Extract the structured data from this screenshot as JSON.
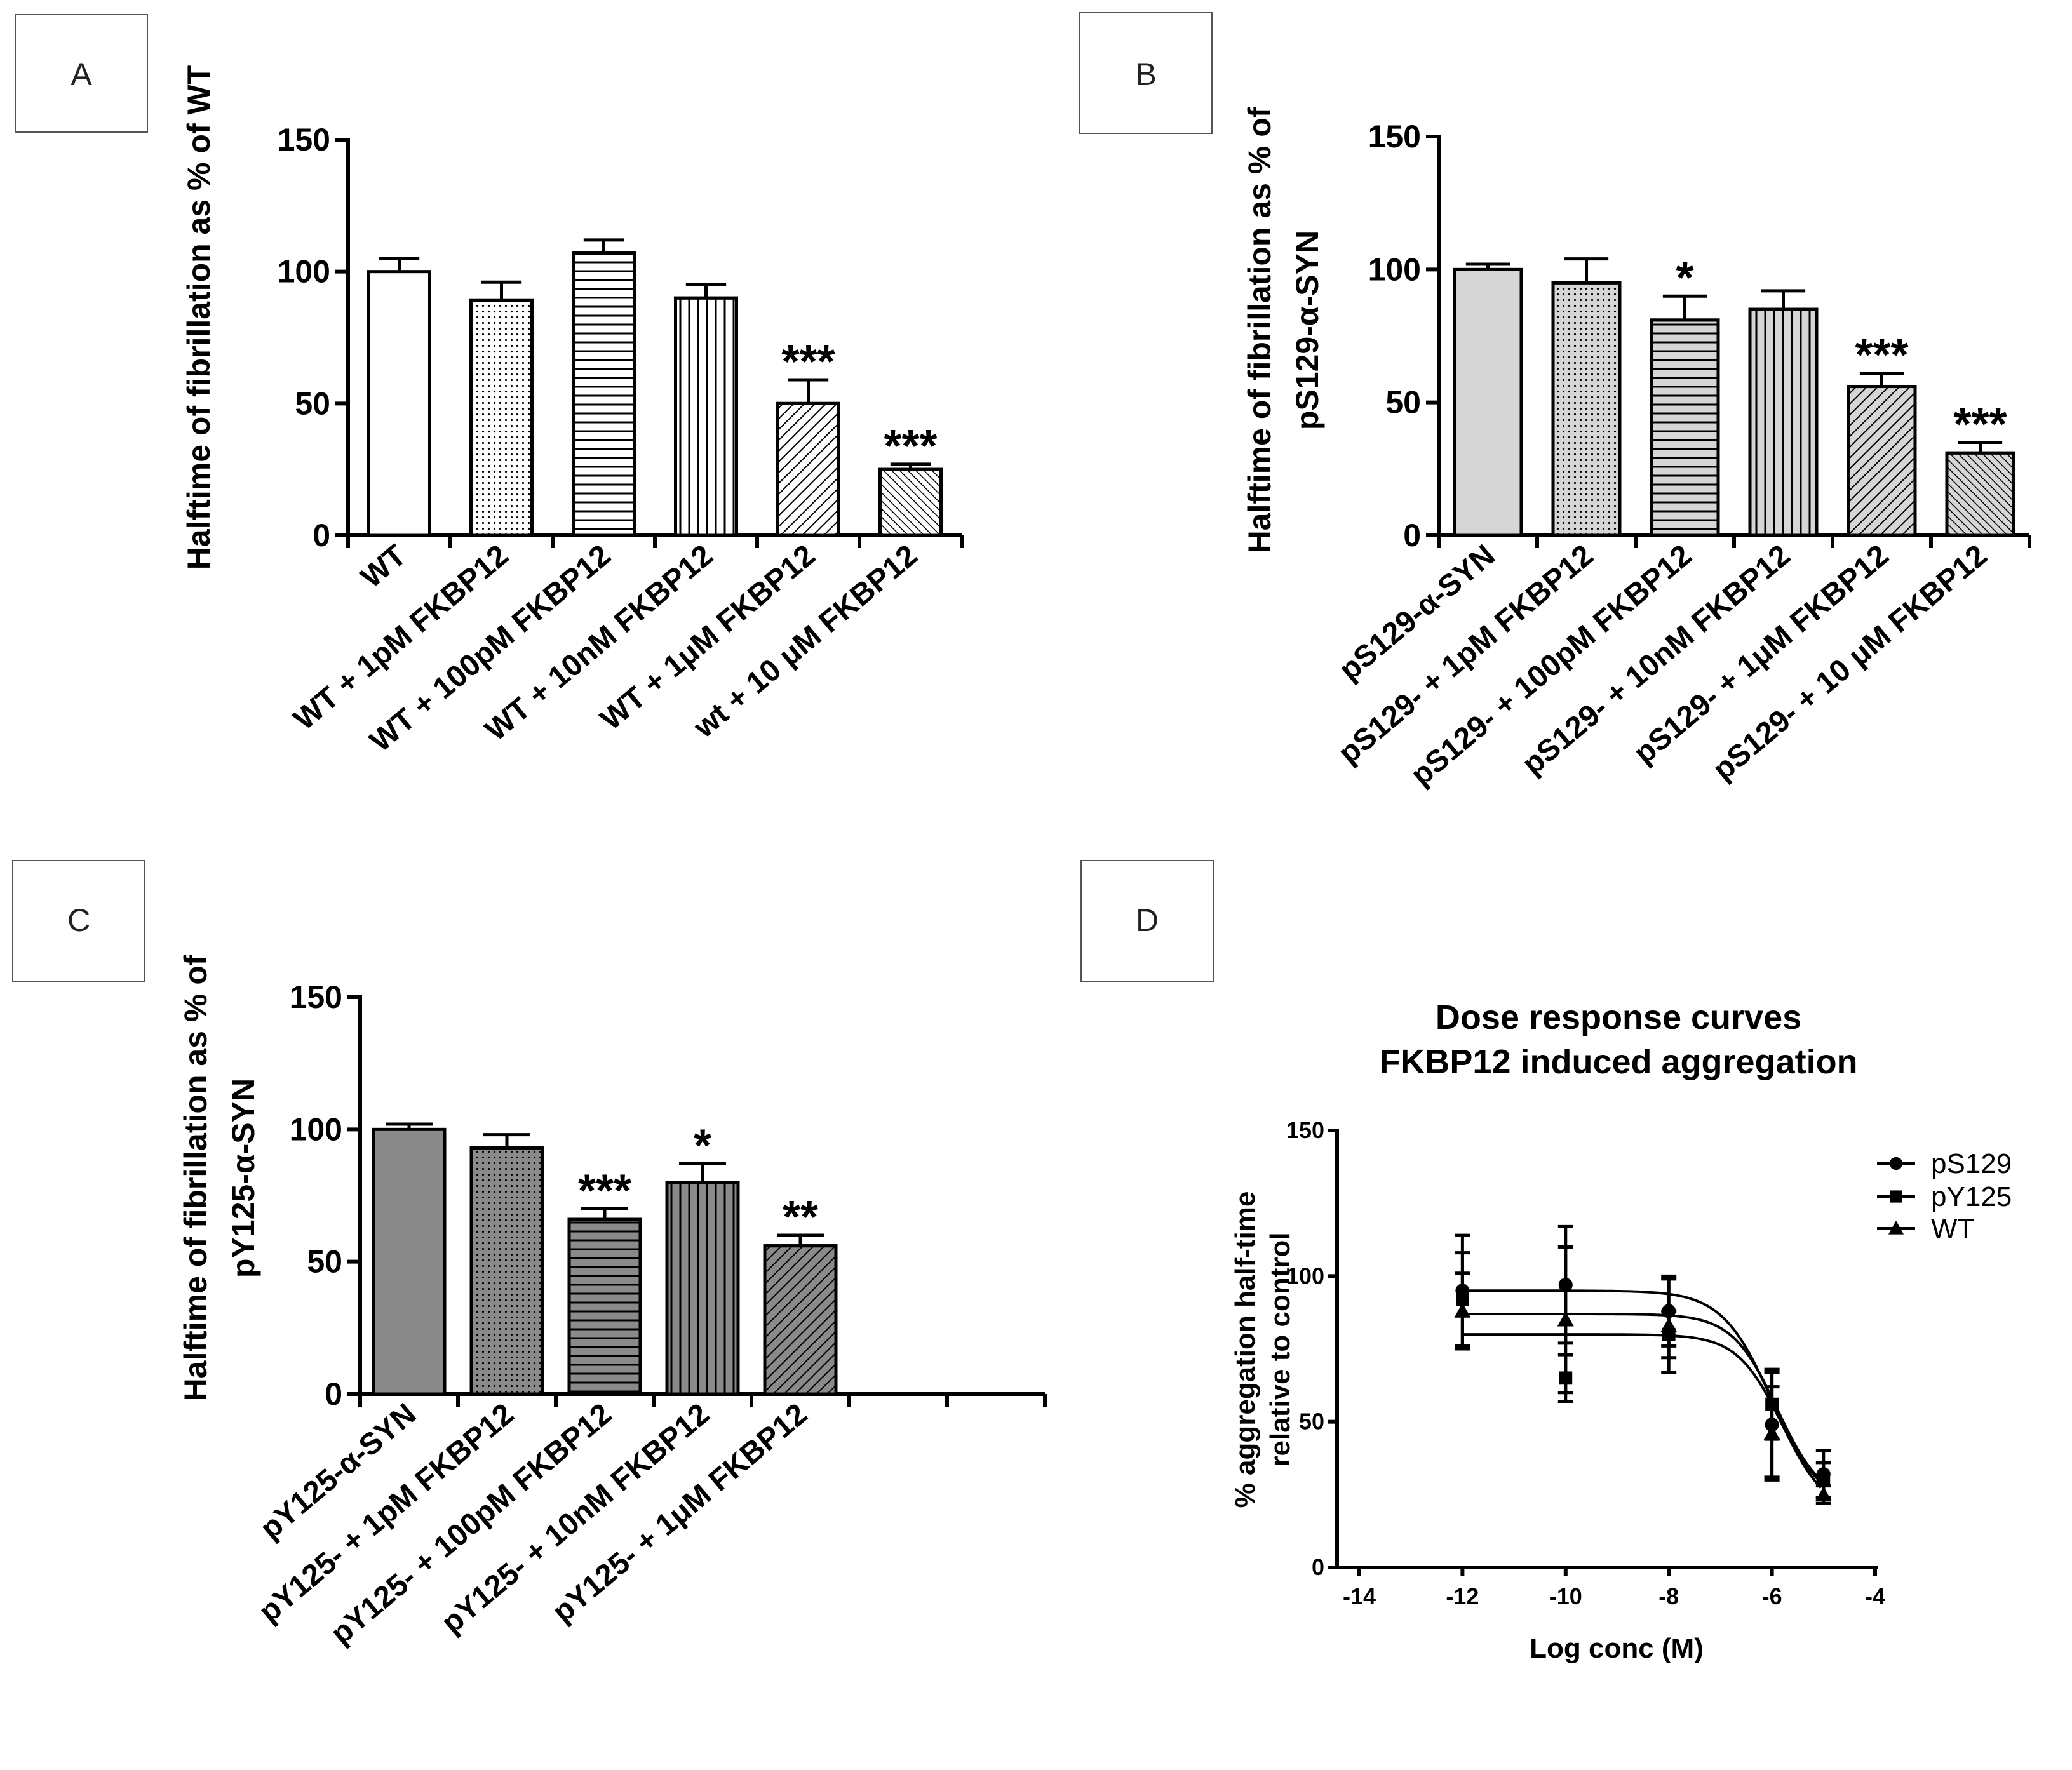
{
  "chart_data": [
    {
      "panel": "A",
      "type": "bar",
      "ylabel": "Halftime of fibrillation as % of WT",
      "ylim": [
        0,
        150
      ],
      "yticks": [
        "0",
        "50",
        "100",
        "150"
      ],
      "categories": [
        "WT",
        "WT + 1pM FKBP12",
        "WT + 100pM FKBP12",
        "WT + 10nM FKBP12",
        "WT + 1μM FKBP12",
        "wt + 10 μM FKBP12"
      ],
      "values": [
        100,
        89,
        107,
        90,
        50,
        25
      ],
      "errors": [
        5,
        7,
        5,
        5,
        9,
        2
      ],
      "significance": [
        "",
        "",
        "",
        "",
        "***",
        "***"
      ],
      "patterns": [
        "white",
        "dots",
        "hlines",
        "vlines",
        "diag",
        "diag2"
      ],
      "colors": [
        "#ffffff",
        "#ffffff",
        "#ffffff",
        "#ffffff",
        "#ffffff",
        "#ffffff"
      ]
    },
    {
      "panel": "B",
      "type": "bar",
      "ylabel_lines": [
        "Halftime of fibrillation as % of",
        "pS129-α-SYN"
      ],
      "ylim": [
        0,
        150
      ],
      "yticks": [
        "0",
        "50",
        "100",
        "150"
      ],
      "categories": [
        "pS129-α-SYN",
        "pS129- + 1pM FKBP12",
        "pS129- + 100pM FKBP12",
        "pS129- + 10nM FKBP12",
        "pS129- + 1μM FKBP12",
        "pS129- + 10 μM FKBP12"
      ],
      "values": [
        100,
        95,
        81,
        85,
        56,
        31
      ],
      "errors": [
        2,
        9,
        9,
        7,
        5,
        4
      ],
      "significance": [
        "",
        "",
        "*",
        "",
        "***",
        "***"
      ],
      "patterns": [
        "solid",
        "dots",
        "hlines",
        "vlines",
        "diag",
        "diag2"
      ],
      "colors": [
        "#d6d6d6",
        "#d6d6d6",
        "#d6d6d6",
        "#d6d6d6",
        "#d6d6d6",
        "#d6d6d6"
      ]
    },
    {
      "panel": "C",
      "type": "bar",
      "ylabel_lines": [
        "Halftime of fibrillation as % of",
        "pY125-α-SYN"
      ],
      "ylim": [
        0,
        150
      ],
      "yticks": [
        "0",
        "50",
        "100",
        "150"
      ],
      "categories": [
        "pY125-α-SYN",
        "pY125- + 1pM FKBP12",
        "pY125- + 100pM FKBP12",
        "pY125- + 10nM FKBP12",
        "pY125- + 1μM FKBP12"
      ],
      "slots": 7,
      "values": [
        100,
        93,
        66,
        80,
        56
      ],
      "errors": [
        2,
        5,
        4,
        7,
        4
      ],
      "significance": [
        "",
        "",
        "***",
        "*",
        "**"
      ],
      "patterns": [
        "solid",
        "dots",
        "hlines",
        "vlines",
        "diag"
      ],
      "colors": [
        "#8a8a8a",
        "#8a8a8a",
        "#8a8a8a",
        "#8a8a8a",
        "#8a8a8a"
      ]
    },
    {
      "panel": "D",
      "type": "scatter",
      "title_lines": [
        "Dose response curves",
        "FKBP12 induced aggregation"
      ],
      "xlabel": "Log conc (M)",
      "ylabel_lines": [
        "% aggregation half-time",
        "relative to control"
      ],
      "xlim": [
        -14,
        -4
      ],
      "ylim": [
        0,
        150
      ],
      "xticks": [
        "-14",
        "-12",
        "-10",
        "-8",
        "-6",
        "-4"
      ],
      "yticks": [
        "0",
        "50",
        "100",
        "150"
      ],
      "x": [
        -12,
        -10,
        -8,
        -6,
        -5
      ],
      "series": [
        {
          "name": "pS129",
          "marker": "circle",
          "values": [
            95,
            97,
            88,
            49,
            32
          ],
          "errors": [
            19,
            20,
            12,
            18,
            8
          ],
          "fit": {
            "top": 95,
            "bottom": 20,
            "logec50": -6.0,
            "hill": 0.9
          }
        },
        {
          "name": "pY125",
          "marker": "square",
          "values": [
            92,
            65,
            80,
            56,
            30
          ],
          "errors": [
            16,
            8,
            8,
            12,
            6
          ],
          "fit": {
            "top": 87,
            "bottom": 22,
            "logec50": -5.9,
            "hill": 1.0
          }
        },
        {
          "name": "WT",
          "marker": "triangle",
          "values": [
            88,
            85,
            83,
            46,
            25
          ],
          "errors": [
            13,
            25,
            16,
            16,
            3
          ],
          "fit": {
            "top": 80,
            "bottom": 18,
            "logec50": -5.8,
            "hill": 1.0
          }
        }
      ]
    }
  ],
  "panel_labels": [
    "A",
    "B",
    "C",
    "D"
  ]
}
